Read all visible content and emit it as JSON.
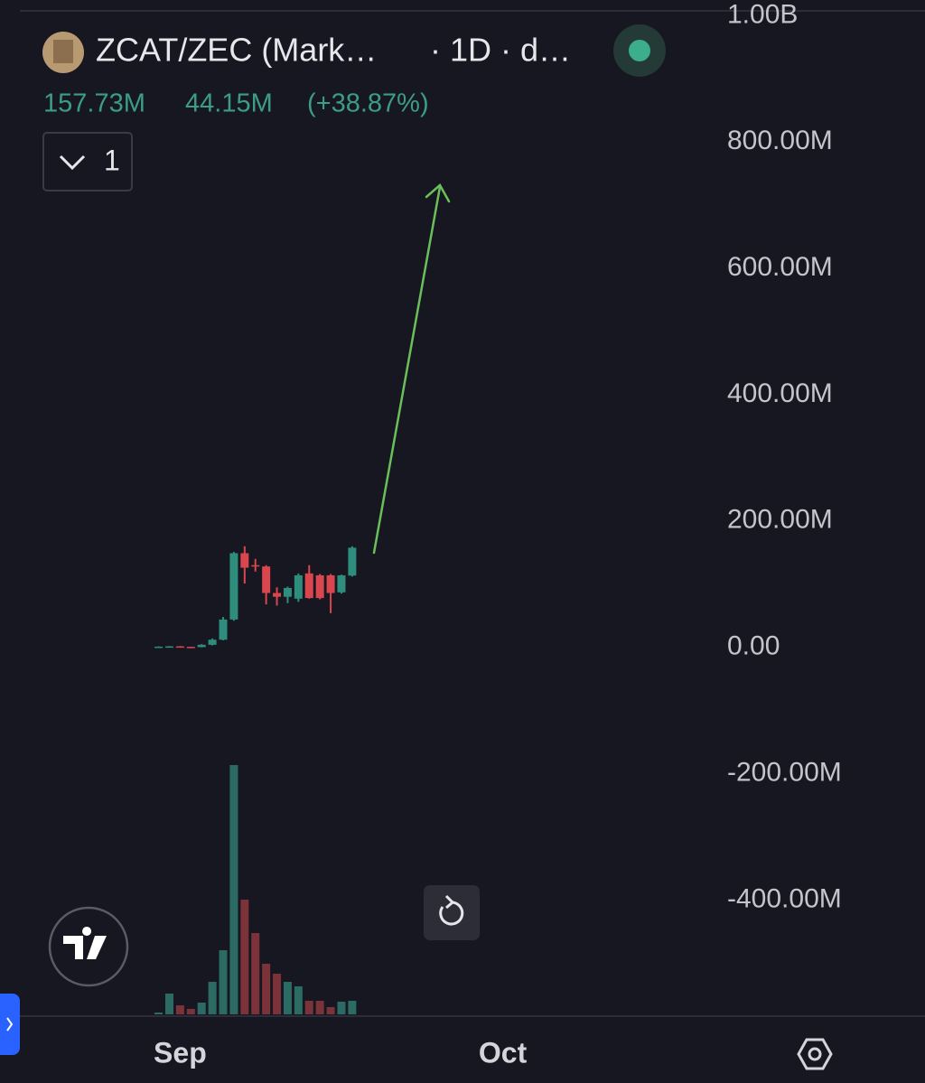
{
  "chart_data": {
    "type": "candlestick",
    "header": {
      "symbol": "ZCAT/ZEC (Mark…",
      "interval": "· 1D · d…",
      "last": "157.73M",
      "change": "44.15M",
      "change_pct": "(+38.87%)",
      "indicator_count": "1"
    },
    "x": [
      0,
      1,
      2,
      3,
      4,
      5,
      6,
      7,
      8,
      9,
      10,
      11,
      12,
      13,
      14,
      15,
      16,
      17,
      18
    ],
    "xlim": [
      -12.9,
      50.6
    ],
    "xticks": [
      {
        "value": 2,
        "label": "Sep"
      },
      {
        "value": 32,
        "label": "Oct"
      }
    ],
    "open": [
      500000,
      1000000,
      1500000,
      800000,
      300000,
      4000000,
      12000000,
      44000000,
      149000000,
      130000000,
      128000000,
      86000000,
      80000000,
      77000000,
      117000000,
      114000000,
      114000000,
      87000000,
      113580000
    ],
    "high": [
      1500000,
      2000000,
      2000000,
      1000000,
      5000000,
      14000000,
      48000000,
      151000000,
      160000000,
      140000000,
      130000000,
      95000000,
      96000000,
      117000000,
      130000000,
      116000000,
      116000000,
      115000000,
      160000000
    ],
    "low": [
      0,
      500000,
      500000,
      0,
      0,
      3000000,
      11000000,
      42000000,
      101000000,
      120000000,
      68000000,
      66000000,
      70000000,
      72000000,
      77000000,
      76000000,
      54000000,
      85000000,
      112000000
    ],
    "close": [
      1000000,
      1500000,
      800000,
      300000,
      4000000,
      12000000,
      44000000,
      149000000,
      126000000,
      128000000,
      86000000,
      80000000,
      94000000,
      114000000,
      78000000,
      78000000,
      86000000,
      114000000,
      157730000
    ],
    "volume": [
      2,
      23,
      10,
      6,
      13,
      36,
      71,
      276,
      127,
      90,
      56,
      45,
      36,
      31,
      15,
      15,
      8,
      14,
      15
    ],
    "volume_lim": [
      0,
      300
    ],
    "up_color": "#2f8d7d",
    "down_color": "#d9464e",
    "volume_up_color": "#2b6b63",
    "volume_down_color": "#7b3238",
    "ylim": [
      -584000000,
      1002000000
    ],
    "yticks": [
      {
        "value": 1000000000,
        "label": "1.00B"
      },
      {
        "value": 800000000,
        "label": "800.00M"
      },
      {
        "value": 600000000,
        "label": "600.00M"
      },
      {
        "value": 400000000,
        "label": "400.00M"
      },
      {
        "value": 200000000,
        "label": "200.00M"
      },
      {
        "value": 0,
        "label": "0.00"
      },
      {
        "value": -200000000,
        "label": "-200.00M"
      },
      {
        "value": -400000000,
        "label": "-400.00M"
      }
    ],
    "grid": true
  }
}
